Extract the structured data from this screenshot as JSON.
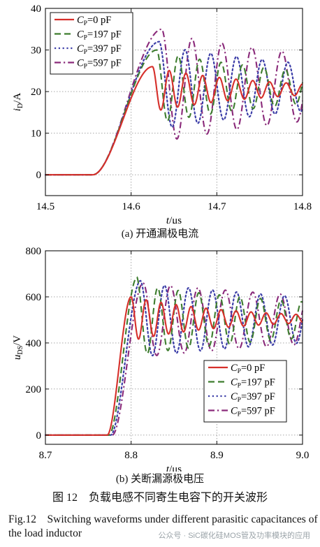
{
  "colors": {
    "cp0": "#d62f2a",
    "cp197": "#3e7d2f",
    "cp397": "#3d3fa8",
    "cp597": "#8a2a7a",
    "grid": "#9a9a9a"
  },
  "chart_data": [
    {
      "type": "line",
      "panel_caption": "(a) 开通漏极电流",
      "ylabel_main": "i",
      "ylabel_sub": "D",
      "ylabel_unit": "/A",
      "xlabel_main": "t",
      "xlabel_unit": "/μs",
      "xlim": [
        14.5,
        14.8
      ],
      "ylim": [
        -5,
        40
      ],
      "xticks": [
        "14.5",
        "14.6",
        "14.7",
        "14.8"
      ],
      "yticks": [
        "0",
        "10",
        "20",
        "30",
        "40"
      ],
      "grid": true,
      "legend_position": "top-left",
      "series": [
        {
          "name": "C_P=0 pF",
          "label_main": "C",
          "label_sub": "P",
          "label_rest": "=0 pF",
          "style": "solid",
          "color_key": "cp0",
          "rise_start": 14.555,
          "rise_end": 14.625,
          "peak": 26,
          "steady": 20.5,
          "amp": 5.3,
          "period": 0.0195,
          "decay": 0.13
        },
        {
          "name": "C_P=197 pF",
          "label_main": "C",
          "label_sub": "P",
          "label_rest": "=197 pF",
          "style": "dash",
          "color_key": "cp197",
          "rise_start": 14.555,
          "rise_end": 14.63,
          "peak": 30,
          "steady": 21,
          "amp": 8.5,
          "period": 0.025,
          "decay": 0.22
        },
        {
          "name": "C_P=397 pF",
          "label_main": "C",
          "label_sub": "P",
          "label_rest": "=397 pF",
          "style": "dot",
          "color_key": "cp397",
          "rise_start": 14.555,
          "rise_end": 14.633,
          "peak": 32,
          "steady": 21,
          "amp": 10,
          "period": 0.03,
          "decay": 0.3
        },
        {
          "name": "C_P=597 pF",
          "label_main": "C",
          "label_sub": "P",
          "label_rest": "=597 pF",
          "style": "dashdot",
          "color_key": "cp597",
          "rise_start": 14.555,
          "rise_end": 14.636,
          "peak": 35,
          "steady": 21,
          "amp": 13,
          "period": 0.035,
          "decay": 0.35
        }
      ]
    },
    {
      "type": "line",
      "panel_caption": "(b) 关断漏源极电压",
      "ylabel_main": "u",
      "ylabel_sub": "DS",
      "ylabel_unit": "/V",
      "xlabel_main": "t",
      "xlabel_unit": "/μs",
      "xlim": [
        8.7,
        9.0
      ],
      "ylim": [
        -40,
        800
      ],
      "xticks": [
        "8.7",
        "8.8",
        "8.9",
        "9.0"
      ],
      "yticks": [
        "0",
        "200",
        "400",
        "600",
        "800"
      ],
      "grid": true,
      "legend_position": "bottom-right",
      "series": [
        {
          "name": "C_P=0 pF",
          "label_main": "C",
          "label_sub": "P",
          "label_rest": "=0 pF",
          "style": "solid",
          "color_key": "cp0",
          "rise_start": 8.772,
          "rise_end": 8.8,
          "peak": 600,
          "steady": 505,
          "amp": 95,
          "period": 0.0175,
          "decay": 0.12
        },
        {
          "name": "C_P=197 pF",
          "label_main": "C",
          "label_sub": "P",
          "label_rest": "=197 pF",
          "style": "dash",
          "color_key": "cp197",
          "rise_start": 8.774,
          "rise_end": 8.807,
          "peak": 685,
          "steady": 500,
          "amp": 150,
          "period": 0.024,
          "decay": 0.3
        },
        {
          "name": "C_P=397 pF",
          "label_main": "C",
          "label_sub": "P",
          "label_rest": "=397 pF",
          "style": "dot",
          "color_key": "cp397",
          "rise_start": 8.776,
          "rise_end": 8.811,
          "peak": 670,
          "steady": 500,
          "amp": 160,
          "period": 0.028,
          "decay": 0.4
        },
        {
          "name": "C_P=597 pF",
          "label_main": "C",
          "label_sub": "P",
          "label_rest": "=597 pF",
          "style": "dashdot",
          "color_key": "cp597",
          "rise_start": 8.778,
          "rise_end": 8.814,
          "peak": 660,
          "steady": 500,
          "amp": 160,
          "period": 0.032,
          "decay": 0.45
        }
      ]
    }
  ],
  "captions": {
    "a": "(a) 开通漏极电流",
    "b": "(b) 关断漏源极电压",
    "figure_cn": "图 12　负载电感不同寄生电容下的开关波形",
    "figure_en": "Fig.12　Switching waveforms under different parasitic capacitances of the load inductor"
  },
  "watermark": "公众号 · SiC碳化硅MOS管及功率模块的应用"
}
